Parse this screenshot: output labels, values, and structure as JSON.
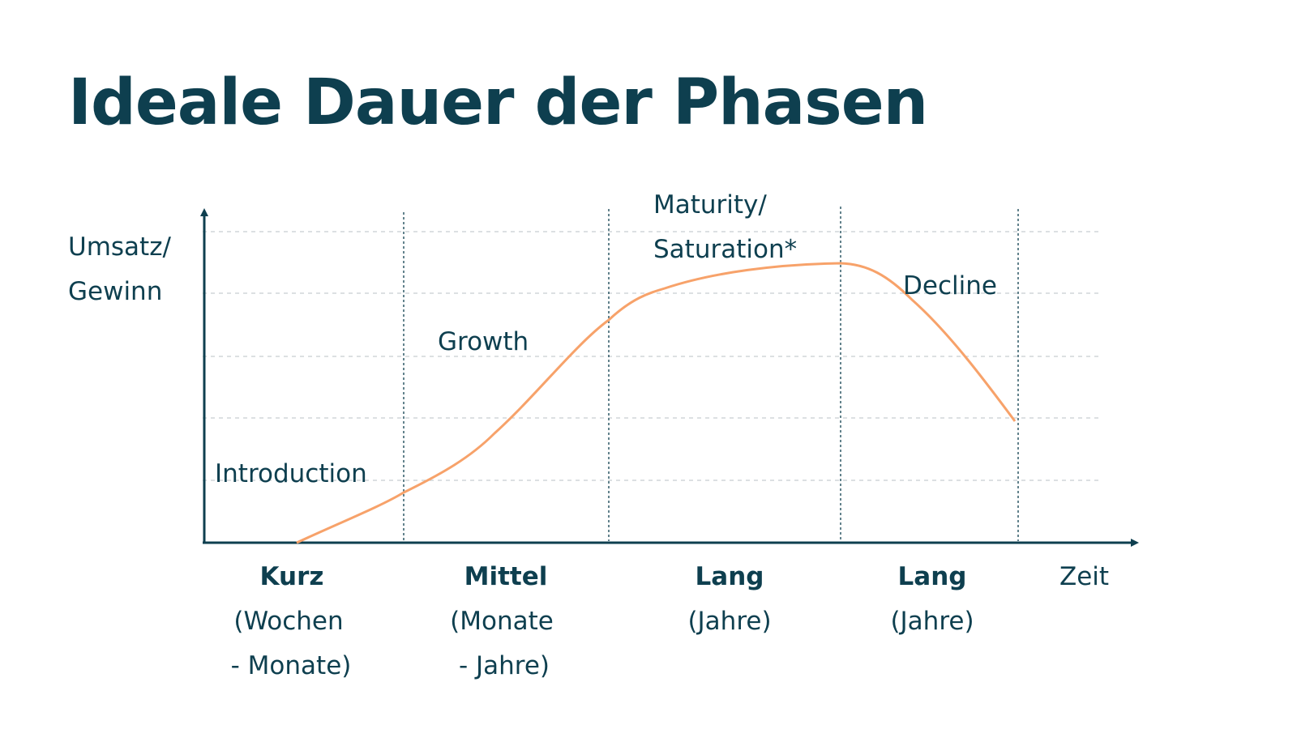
{
  "title": "Ideale Dauer der Phasen",
  "colors": {
    "text": "#0e3f4f",
    "curve": "#f7a26a",
    "grid": "#c8cdd0",
    "axis": "#0e3f4f"
  },
  "axes": {
    "y_label_lines": [
      "Umsatz/",
      "Gewinn"
    ],
    "x_label": "Zeit"
  },
  "phases": [
    {
      "label_lines": [
        "Introduction"
      ],
      "duration": "Kurz",
      "duration_detail_lines": [
        "(Wochen",
        "- Monate)"
      ]
    },
    {
      "label_lines": [
        "Growth"
      ],
      "duration": "Mittel",
      "duration_detail_lines": [
        "(Monate",
        " - Jahre)"
      ]
    },
    {
      "label_lines": [
        "Maturity/",
        "Saturation*"
      ],
      "duration": "Lang",
      "duration_detail_lines": [
        "(Jahre)"
      ]
    },
    {
      "label_lines": [
        "Decline"
      ],
      "duration": "Lang",
      "duration_detail_lines": [
        "(Jahre)"
      ]
    }
  ]
}
